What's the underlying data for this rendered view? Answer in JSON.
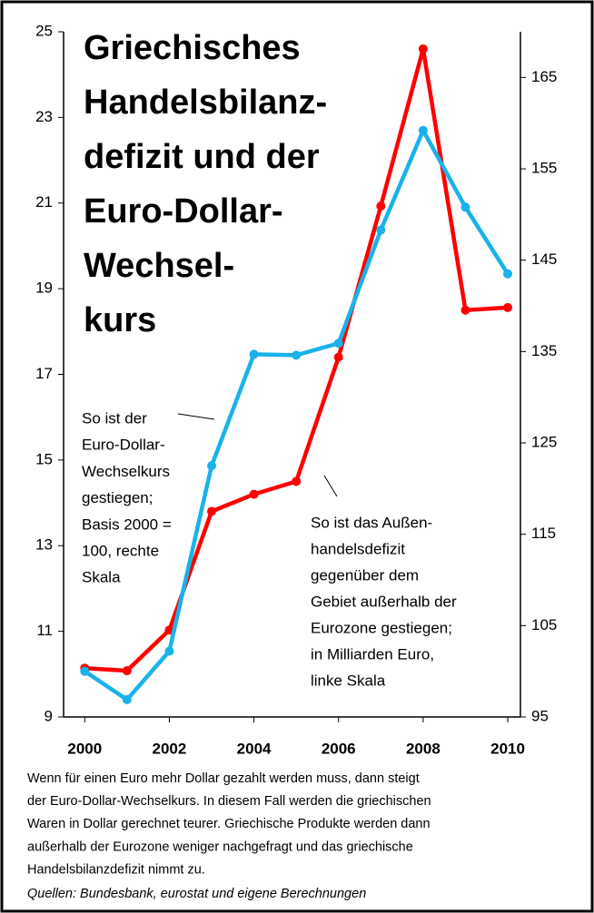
{
  "chart_data": {
    "type": "line",
    "title": [
      "Griechisches",
      "Handelsbilanz-",
      "defizit und der",
      "Euro-Dollar-",
      "Wechsel-",
      "kurs"
    ],
    "x": [
      2000,
      2001,
      2002,
      2003,
      2004,
      2005,
      2006,
      2007,
      2008,
      2009,
      2010
    ],
    "xlim": [
      1999.5,
      2010.3
    ],
    "xticks": [
      2000,
      2002,
      2004,
      2006,
      2008,
      2010
    ],
    "ylim": [
      9,
      25
    ],
    "yticks": [
      9,
      11,
      13,
      15,
      17,
      19,
      21,
      23,
      25
    ],
    "y2lim": [
      95,
      170
    ],
    "y2ticks": [
      95,
      105,
      115,
      125,
      135,
      145,
      155,
      165
    ],
    "series": [
      {
        "name": "Außenhandelsdefizit",
        "color": "#ff0000",
        "values": [
          10.14,
          10.08,
          11.03,
          13.8,
          14.2,
          14.5,
          17.4,
          20.93,
          24.6,
          18.5,
          18.56
        ]
      },
      {
        "name": "Euro-Dollar-Wechselkurs",
        "color": "#19b2ea",
        "axis": "y2",
        "values": [
          100,
          96.9,
          102.2,
          122.5,
          134.7,
          134.6,
          135.9,
          148.3,
          159.2,
          150.8,
          143.5
        ]
      }
    ],
    "annotations": [
      [
        "So ist der",
        "Euro-Dollar-",
        "Wechselkurs",
        "gestiegen;",
        "Basis 2000 =",
        "100, rechte",
        "Skala"
      ],
      [
        "So ist das Außen-",
        "handelsdefizit",
        "gegenüber  dem",
        "Gebiet außerhalb der",
        "Eurozone  gestiegen;",
        "in Milliarden Euro,",
        "linke Skala"
      ]
    ],
    "caption": [
      "Wenn für einen Euro mehr Dollar gezahlt werden muss, dann steigt",
      "der Euro-Dollar-Wechselkurs. In diesem Fall werden die griechischen",
      "Waren in Dollar gerechnet teurer. Griechische Produkte werden dann",
      "außerhalb der Eurozone weniger nachgefragt und das griechische",
      "Handelsbilanzdefizit nimmt zu."
    ],
    "source": "Quellen: Bundesbank, eurostat und eigene Berechnungen"
  }
}
